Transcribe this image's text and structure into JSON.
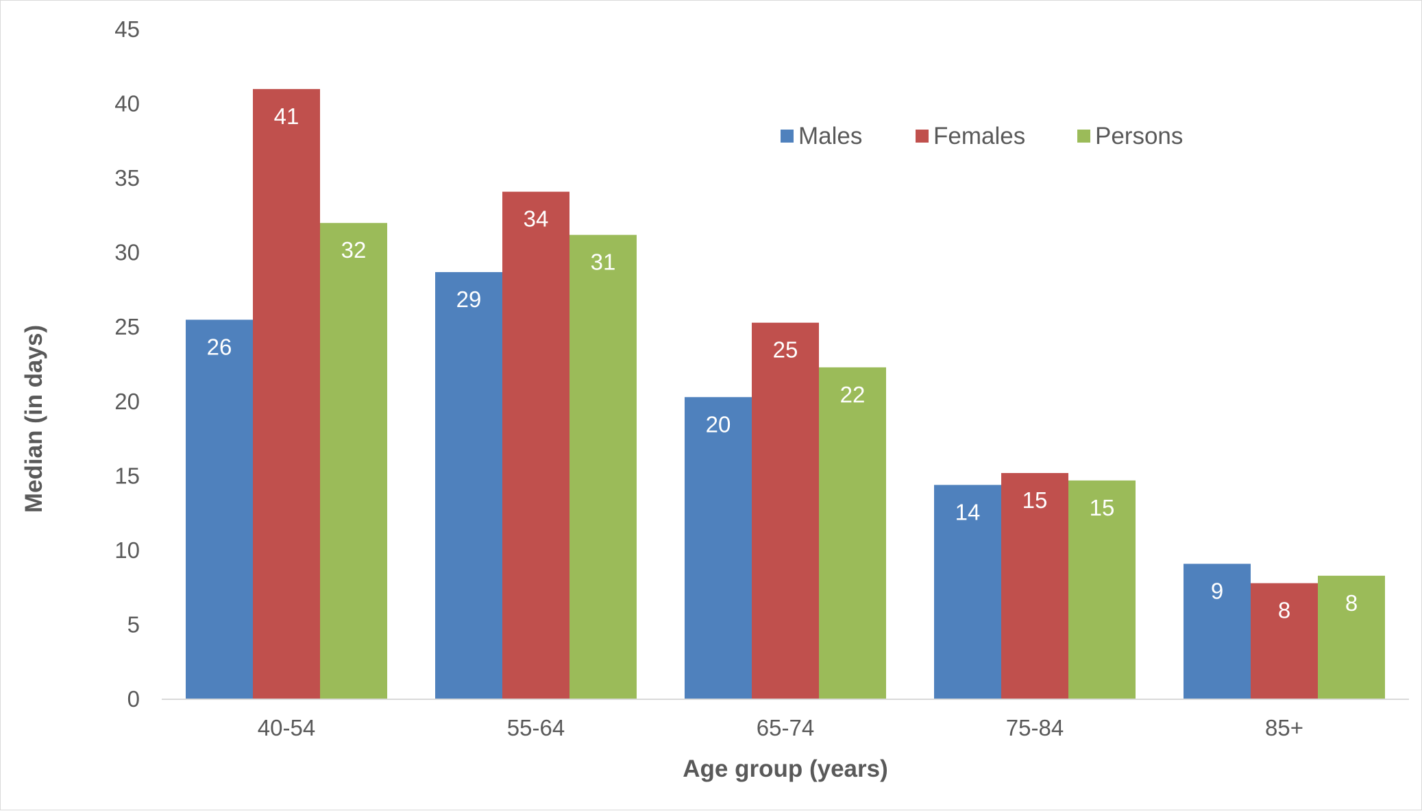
{
  "chart_data": {
    "type": "bar",
    "categories": [
      "40-54",
      "55-64",
      "65-74",
      "75-84",
      "85+"
    ],
    "series": [
      {
        "name": "Males",
        "color": "#4f81bd",
        "values": [
          25.5,
          28.7,
          20.3,
          14.4,
          9.1
        ],
        "labels": [
          "26",
          "29",
          "20",
          "14",
          "9"
        ]
      },
      {
        "name": "Females",
        "color": "#c0504d",
        "values": [
          41.0,
          34.1,
          25.3,
          15.2,
          7.8
        ],
        "labels": [
          "41",
          "34",
          "25",
          "15",
          "8"
        ]
      },
      {
        "name": "Persons",
        "color": "#9bbb59",
        "values": [
          32.0,
          31.2,
          22.3,
          14.7,
          8.3
        ],
        "labels": [
          "32",
          "31",
          "22",
          "15",
          "8"
        ]
      }
    ],
    "xlabel": "Age group (years)",
    "ylabel": "Median (in days)",
    "ylim": [
      0,
      45
    ],
    "yticks": [
      "0",
      "5",
      "10",
      "15",
      "20",
      "25",
      "30",
      "35",
      "40",
      "45"
    ],
    "grid": false,
    "legend": "top-right"
  }
}
